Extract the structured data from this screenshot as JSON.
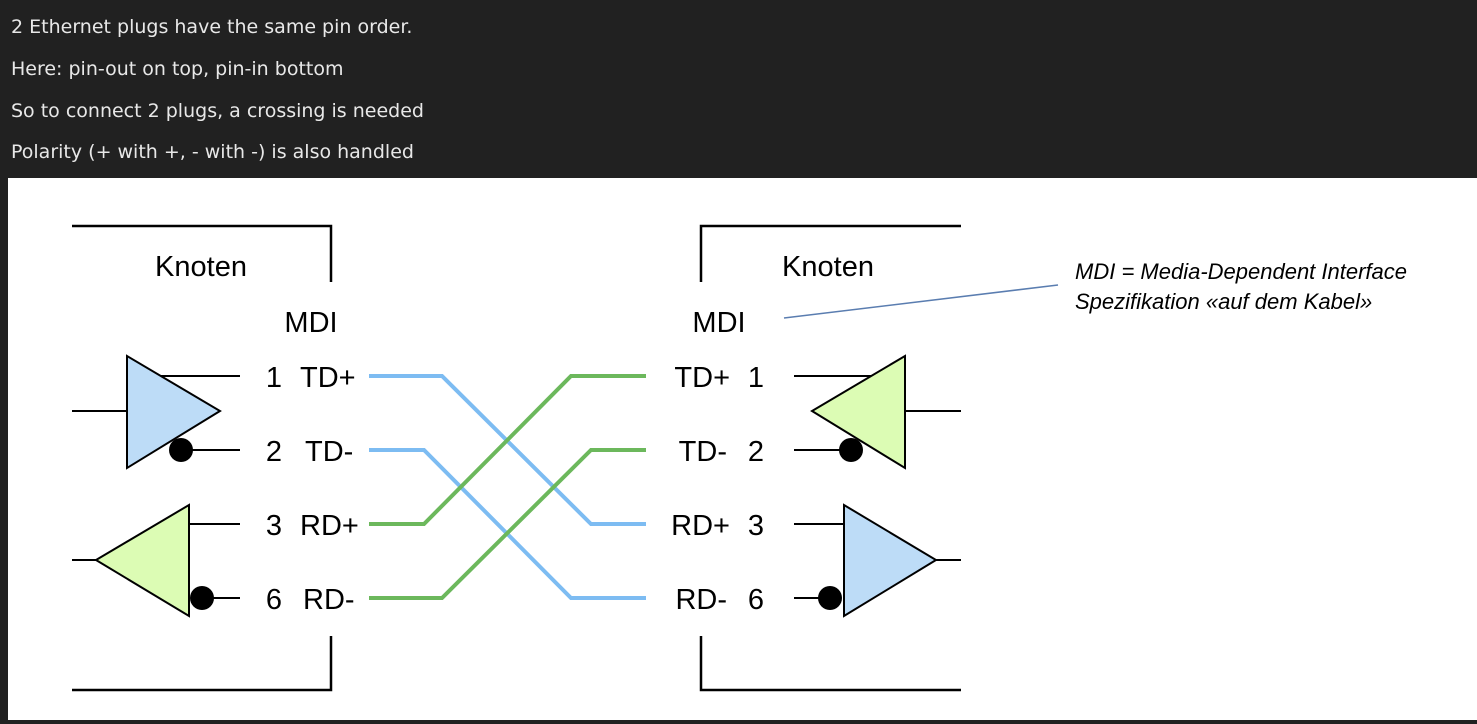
{
  "notes": [
    "2 Ethernet plugs have the same pin order.",
    "Here: pin-out on top, pin-in bottom",
    "So to connect 2 plugs, a crossing is needed",
    "Polarity (+ with +, - with -) is also handled"
  ],
  "diagram": {
    "left_node": {
      "title": "Knoten",
      "mdi": "MDI",
      "pins": [
        {
          "num": "1",
          "name": "TD+"
        },
        {
          "num": "2",
          "name": "TD-"
        },
        {
          "num": "3",
          "name": "RD+"
        },
        {
          "num": "6",
          "name": "RD-"
        }
      ]
    },
    "right_node": {
      "title": "Knoten",
      "mdi": "MDI",
      "pins": [
        {
          "num": "1",
          "name": "TD+"
        },
        {
          "num": "2",
          "name": "TD-"
        },
        {
          "num": "3",
          "name": "RD+"
        },
        {
          "num": "6",
          "name": "RD-"
        }
      ]
    },
    "annotation": {
      "line1": "MDI = Media-Dependent Interface",
      "line2": "Spezifikation «auf dem Kabel»"
    },
    "colors": {
      "tx_wire": "#7dbcf2",
      "rx_wire": "#6cb85c",
      "tx_amp_fill": "#bddcf7",
      "rx_amp_fill": "#dcfcb4",
      "annotation_line": "#5a7db0"
    }
  }
}
